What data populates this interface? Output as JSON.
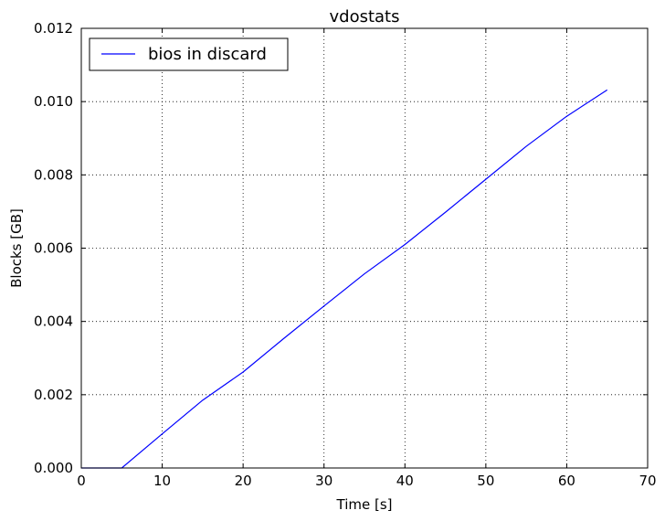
{
  "chart_data": {
    "type": "line",
    "title": "vdostats",
    "xlabel": "Time [s]",
    "ylabel": "Blocks [GB]",
    "xlim": [
      0,
      70
    ],
    "ylim": [
      0,
      0.012
    ],
    "xticks": [
      0,
      10,
      20,
      30,
      40,
      50,
      60,
      70
    ],
    "yticks": [
      0,
      0.002,
      0.004,
      0.006,
      0.008,
      0.01,
      0.012
    ],
    "xtick_labels": [
      "0",
      "10",
      "20",
      "30",
      "40",
      "50",
      "60",
      "70"
    ],
    "ytick_labels": [
      "0.000",
      "0.002",
      "0.004",
      "0.006",
      "0.008",
      "0.010",
      "0.012"
    ],
    "grid": true,
    "legend_position": "top-left",
    "series": [
      {
        "name": "bios in discard",
        "color": "#0000ff",
        "x": [
          0,
          5,
          10,
          15,
          20,
          25,
          30,
          35,
          40,
          45,
          50,
          55,
          60,
          65
        ],
        "y": [
          0.0,
          0.0,
          0.00093,
          0.00185,
          0.00262,
          0.00353,
          0.00442,
          0.0053,
          0.0061,
          0.00698,
          0.00788,
          0.00878,
          0.0096,
          0.01032
        ]
      }
    ]
  }
}
